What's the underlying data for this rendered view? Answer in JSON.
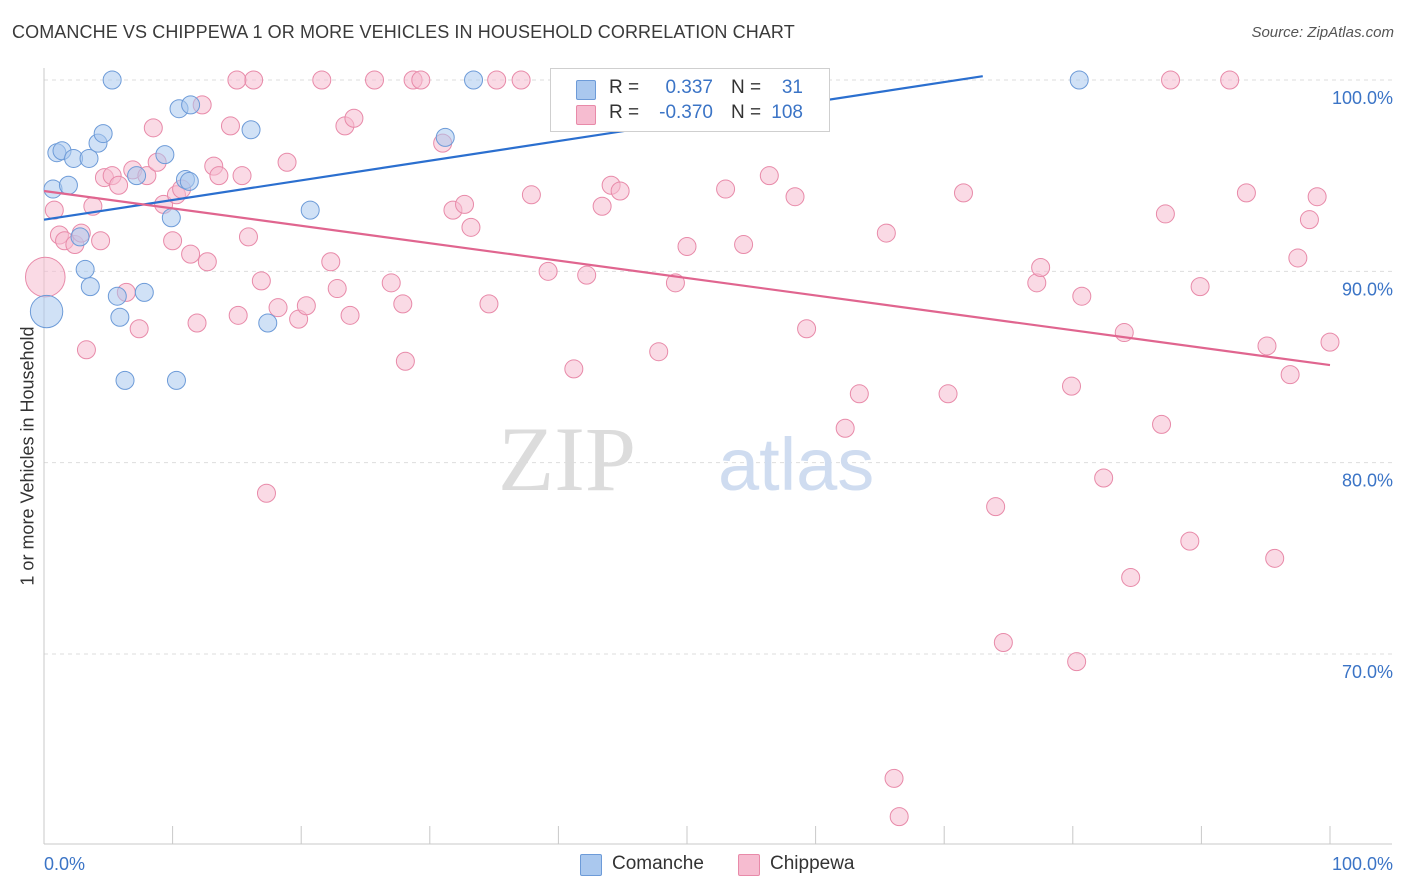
{
  "title": "COMANCHE VS CHIPPEWA 1 OR MORE VEHICLES IN HOUSEHOLD CORRELATION CHART",
  "source": "Source: ZipAtlas.com",
  "watermark": {
    "part1": "ZIP",
    "part2": "atlas"
  },
  "legend": {
    "rows": [
      {
        "series": "Comanche",
        "r_label": "R =",
        "r_value": "0.337",
        "n_label": "N =",
        "n_value": "31"
      },
      {
        "series": "Chippewa",
        "r_label": "R =",
        "r_value": "-0.370",
        "n_label": "N =",
        "n_value": "108"
      }
    ]
  },
  "bottom_legend": [
    "Comanche",
    "Chippewa"
  ],
  "chart_data": {
    "type": "scatter",
    "title": "COMANCHE VS CHIPPEWA 1 OR MORE VEHICLES IN HOUSEHOLD CORRELATION CHART",
    "xlabel": "",
    "ylabel": "1 or more Vehicles in Household",
    "xlim": [
      0,
      100
    ],
    "ylim": [
      60,
      101
    ],
    "x_tick_labels": [
      "0.0%",
      "100.0%"
    ],
    "y_ticks": [
      70,
      80,
      90,
      100
    ],
    "y_tick_labels": [
      "70.0%",
      "80.0%",
      "90.0%",
      "100.0%"
    ],
    "colors": {
      "Comanche_fill": "#aac8ee",
      "Comanche_stroke": "#6d9bd8",
      "Comanche_line": "#2b6fcf",
      "Chippewa_fill": "#f6bcd0",
      "Chippewa_stroke": "#e88aa9",
      "Chippewa_line": "#e0658f",
      "tick_label": "#3b74c6",
      "grid": "#dddddd"
    },
    "series": [
      {
        "name": "Comanche",
        "r": 0.337,
        "n": 31,
        "trend": {
          "x": [
            0,
            73
          ],
          "y": [
            92.7,
            100.2
          ]
        },
        "points": [
          [
            0.7,
            94.3
          ],
          [
            1.0,
            96.2
          ],
          [
            1.4,
            96.3
          ],
          [
            1.9,
            94.5
          ],
          [
            2.3,
            95.9
          ],
          [
            2.8,
            91.8
          ],
          [
            3.2,
            90.1
          ],
          [
            3.6,
            89.2
          ],
          [
            3.5,
            95.9
          ],
          [
            4.2,
            96.7
          ],
          [
            4.6,
            97.2
          ],
          [
            5.3,
            100.0
          ],
          [
            5.7,
            88.7
          ],
          [
            5.9,
            87.6
          ],
          [
            6.3,
            84.3
          ],
          [
            7.2,
            95.0
          ],
          [
            7.8,
            88.9
          ],
          [
            9.4,
            96.1
          ],
          [
            9.9,
            92.8
          ],
          [
            10.3,
            84.3
          ],
          [
            10.5,
            98.5
          ],
          [
            11.0,
            94.8
          ],
          [
            11.4,
            98.7
          ],
          [
            11.3,
            94.7
          ],
          [
            16.1,
            97.4
          ],
          [
            17.4,
            87.3
          ],
          [
            20.7,
            93.2
          ],
          [
            31.2,
            97.0
          ],
          [
            33.4,
            100.0
          ],
          [
            80.5,
            100.0
          ],
          [
            0.2,
            87.9
          ]
        ],
        "point_sizes": [
          1,
          1,
          1,
          1,
          1,
          1,
          1,
          1,
          1,
          1,
          1,
          1,
          1,
          1,
          1,
          1,
          1,
          1,
          1,
          1,
          1,
          1,
          1,
          1,
          1,
          1,
          1,
          1,
          1,
          1,
          1.8
        ]
      },
      {
        "name": "Chippewa",
        "r": -0.37,
        "n": 108,
        "trend": {
          "x": [
            0,
            100
          ],
          "y": [
            94.2,
            85.1
          ]
        },
        "points": [
          [
            0.8,
            93.2
          ],
          [
            1.2,
            91.9
          ],
          [
            1.6,
            91.6
          ],
          [
            2.4,
            91.4
          ],
          [
            2.9,
            92.0
          ],
          [
            3.3,
            85.9
          ],
          [
            3.8,
            93.4
          ],
          [
            4.4,
            91.6
          ],
          [
            4.7,
            94.9
          ],
          [
            5.3,
            95.0
          ],
          [
            5.8,
            94.5
          ],
          [
            6.4,
            88.9
          ],
          [
            6.9,
            95.3
          ],
          [
            7.4,
            87.0
          ],
          [
            8.0,
            95.0
          ],
          [
            8.5,
            97.5
          ],
          [
            8.8,
            95.7
          ],
          [
            9.3,
            93.5
          ],
          [
            10.0,
            91.6
          ],
          [
            10.3,
            94.0
          ],
          [
            10.7,
            94.3
          ],
          [
            11.4,
            90.9
          ],
          [
            11.9,
            87.3
          ],
          [
            12.3,
            98.7
          ],
          [
            12.7,
            90.5
          ],
          [
            13.2,
            95.5
          ],
          [
            13.6,
            95.0
          ],
          [
            14.5,
            97.6
          ],
          [
            15.1,
            87.7
          ],
          [
            15.4,
            95.0
          ],
          [
            15.9,
            91.8
          ],
          [
            16.3,
            100.0
          ],
          [
            16.9,
            89.5
          ],
          [
            17.3,
            78.4
          ],
          [
            18.2,
            88.1
          ],
          [
            18.9,
            95.7
          ],
          [
            19.8,
            87.5
          ],
          [
            20.4,
            88.2
          ],
          [
            21.6,
            100.0
          ],
          [
            22.3,
            90.5
          ],
          [
            22.8,
            89.1
          ],
          [
            23.4,
            97.6
          ],
          [
            23.8,
            87.7
          ],
          [
            24.1,
            98.0
          ],
          [
            25.7,
            100.0
          ],
          [
            27.0,
            89.4
          ],
          [
            27.9,
            88.3
          ],
          [
            28.1,
            85.3
          ],
          [
            28.7,
            100.0
          ],
          [
            29.3,
            100.0
          ],
          [
            31.0,
            96.7
          ],
          [
            31.8,
            93.2
          ],
          [
            32.7,
            93.5
          ],
          [
            33.2,
            92.3
          ],
          [
            34.6,
            88.3
          ],
          [
            35.2,
            100.0
          ],
          [
            37.9,
            94.0
          ],
          [
            39.2,
            90.0
          ],
          [
            41.2,
            84.9
          ],
          [
            42.2,
            89.8
          ],
          [
            43.4,
            93.4
          ],
          [
            44.1,
            94.5
          ],
          [
            44.8,
            94.2
          ],
          [
            46.1,
            100.0
          ],
          [
            47.8,
            85.8
          ],
          [
            49.1,
            89.4
          ],
          [
            50.0,
            91.3
          ],
          [
            53.0,
            94.3
          ],
          [
            54.4,
            91.4
          ],
          [
            56.4,
            95.0
          ],
          [
            58.4,
            93.9
          ],
          [
            59.3,
            87.0
          ],
          [
            62.3,
            81.8
          ],
          [
            63.4,
            83.6
          ],
          [
            65.5,
            92.0
          ],
          [
            66.1,
            63.5
          ],
          [
            66.5,
            61.5
          ],
          [
            70.3,
            83.6
          ],
          [
            71.5,
            94.1
          ],
          [
            74.0,
            77.7
          ],
          [
            74.6,
            70.6
          ],
          [
            77.2,
            89.4
          ],
          [
            77.5,
            90.2
          ],
          [
            79.9,
            84.0
          ],
          [
            80.3,
            69.6
          ],
          [
            80.7,
            88.7
          ],
          [
            82.4,
            79.2
          ],
          [
            84.0,
            86.8
          ],
          [
            84.5,
            74.0
          ],
          [
            86.9,
            82.0
          ],
          [
            87.2,
            93.0
          ],
          [
            87.6,
            100.0
          ],
          [
            89.1,
            75.9
          ],
          [
            89.9,
            89.2
          ],
          [
            92.2,
            100.0
          ],
          [
            93.5,
            94.1
          ],
          [
            95.1,
            86.1
          ],
          [
            95.7,
            75.0
          ],
          [
            96.9,
            84.6
          ],
          [
            97.5,
            90.7
          ],
          [
            98.4,
            92.7
          ],
          [
            99.0,
            93.9
          ],
          [
            100.0,
            86.3
          ],
          [
            55.4,
            100.0
          ],
          [
            53.3,
            100.0
          ],
          [
            37.1,
            100.0
          ],
          [
            15.0,
            100.0
          ],
          [
            0.1,
            89.7
          ]
        ],
        "point_sizes": [
          1,
          1,
          1,
          1,
          1,
          1,
          1,
          1,
          1,
          1,
          1,
          1,
          1,
          1,
          1,
          1,
          1,
          1,
          1,
          1,
          1,
          1,
          1,
          1,
          1,
          1,
          1,
          1,
          1,
          1,
          1,
          1,
          1,
          1,
          1,
          1,
          1,
          1,
          1,
          1,
          1,
          1,
          1,
          1,
          1,
          1,
          1,
          1,
          1,
          1,
          1,
          1,
          1,
          1,
          1,
          1,
          1,
          1,
          1,
          1,
          1,
          1,
          1,
          1,
          1,
          1,
          1,
          1,
          1,
          1,
          1,
          1,
          1,
          1,
          1,
          1,
          1,
          1,
          1,
          1,
          1,
          1,
          1,
          1,
          1,
          1,
          1,
          1,
          1,
          1,
          1,
          1,
          1,
          1,
          1,
          1,
          1,
          1,
          1,
          1,
          1,
          1,
          1,
          1,
          1,
          1,
          1,
          2.2
        ]
      }
    ]
  }
}
